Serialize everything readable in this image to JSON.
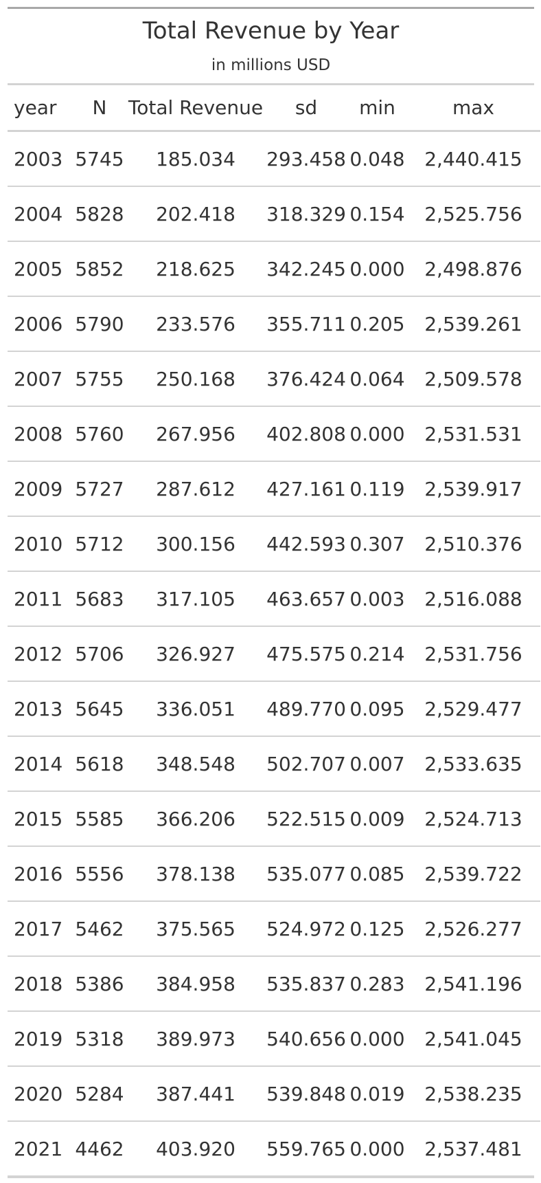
{
  "table": {
    "title": "Total Revenue by Year",
    "subtitle": "in millions USD",
    "columns": [
      "year",
      "N",
      "Total Revenue",
      "sd",
      "min",
      "max"
    ],
    "rows": [
      [
        "2003",
        "5745",
        "185.034",
        "293.458",
        "0.048",
        "2,440.415"
      ],
      [
        "2004",
        "5828",
        "202.418",
        "318.329",
        "0.154",
        "2,525.756"
      ],
      [
        "2005",
        "5852",
        "218.625",
        "342.245",
        "0.000",
        "2,498.876"
      ],
      [
        "2006",
        "5790",
        "233.576",
        "355.711",
        "0.205",
        "2,539.261"
      ],
      [
        "2007",
        "5755",
        "250.168",
        "376.424",
        "0.064",
        "2,509.578"
      ],
      [
        "2008",
        "5760",
        "267.956",
        "402.808",
        "0.000",
        "2,531.531"
      ],
      [
        "2009",
        "5727",
        "287.612",
        "427.161",
        "0.119",
        "2,539.917"
      ],
      [
        "2010",
        "5712",
        "300.156",
        "442.593",
        "0.307",
        "2,510.376"
      ],
      [
        "2011",
        "5683",
        "317.105",
        "463.657",
        "0.003",
        "2,516.088"
      ],
      [
        "2012",
        "5706",
        "326.927",
        "475.575",
        "0.214",
        "2,531.756"
      ],
      [
        "2013",
        "5645",
        "336.051",
        "489.770",
        "0.095",
        "2,529.477"
      ],
      [
        "2014",
        "5618",
        "348.548",
        "502.707",
        "0.007",
        "2,533.635"
      ],
      [
        "2015",
        "5585",
        "366.206",
        "522.515",
        "0.009",
        "2,524.713"
      ],
      [
        "2016",
        "5556",
        "378.138",
        "535.077",
        "0.085",
        "2,539.722"
      ],
      [
        "2017",
        "5462",
        "375.565",
        "524.972",
        "0.125",
        "2,526.277"
      ],
      [
        "2018",
        "5386",
        "384.958",
        "535.837",
        "0.283",
        "2,541.196"
      ],
      [
        "2019",
        "5318",
        "389.973",
        "540.656",
        "0.000",
        "2,541.045"
      ],
      [
        "2020",
        "5284",
        "387.441",
        "539.848",
        "0.019",
        "2,538.235"
      ],
      [
        "2021",
        "4462",
        "403.920",
        "559.765",
        "0.000",
        "2,537.481"
      ]
    ]
  },
  "colors": {
    "text": "#333333",
    "top_rule": "#a8a8a8",
    "row_rule": "#d3d3d3"
  }
}
